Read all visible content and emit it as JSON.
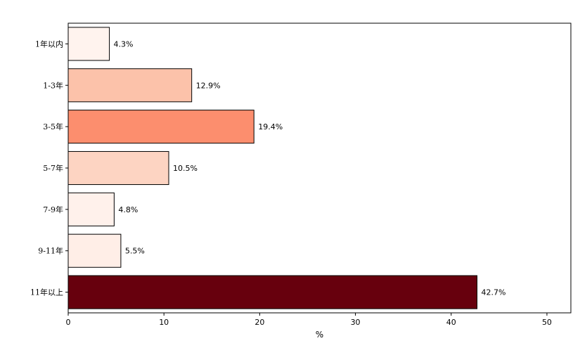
{
  "chart_data": {
    "type": "bar",
    "orientation": "horizontal",
    "categories": [
      "1年以内",
      "1-3年",
      "3-5年",
      "5-7年",
      "7-9年",
      "9-11年",
      "11年以上"
    ],
    "values": [
      4.3,
      12.9,
      19.4,
      10.5,
      4.8,
      5.5,
      42.7
    ],
    "data_labels": [
      "4.3%",
      "12.9%",
      "19.4%",
      "10.5%",
      "4.8%",
      "5.5%",
      "42.7%"
    ],
    "bar_colors": [
      "#fff3ee",
      "#fcc2aa",
      "#fc8e6e",
      "#fdd4c2",
      "#fff1eb",
      "#ffeee7",
      "#67000d"
    ],
    "bar_edge_color": "#000000",
    "title": "",
    "xlabel": "%",
    "ylabel": "",
    "xlim": [
      0,
      52.5
    ],
    "xticks": [
      0,
      10,
      20,
      30,
      40,
      50
    ],
    "xtick_labels": [
      "0",
      "10",
      "20",
      "30",
      "40",
      "50"
    ],
    "grid": false,
    "legend": "none"
  }
}
